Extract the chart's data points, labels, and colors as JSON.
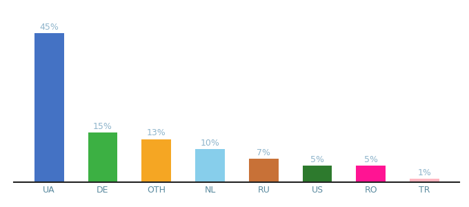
{
  "categories": [
    "UA",
    "DE",
    "OTH",
    "NL",
    "RU",
    "US",
    "RO",
    "TR"
  ],
  "values": [
    45,
    15,
    13,
    10,
    7,
    5,
    5,
    1
  ],
  "bar_colors": [
    "#4472c4",
    "#3cb043",
    "#f5a623",
    "#87ceeb",
    "#c87137",
    "#2d7a2d",
    "#ff1493",
    "#ffb6c1"
  ],
  "label_color": "#8eb4cb",
  "xlabel_color": "#5a8a9f",
  "background_color": "#ffffff",
  "ylim": [
    0,
    50
  ],
  "bar_width": 0.55
}
